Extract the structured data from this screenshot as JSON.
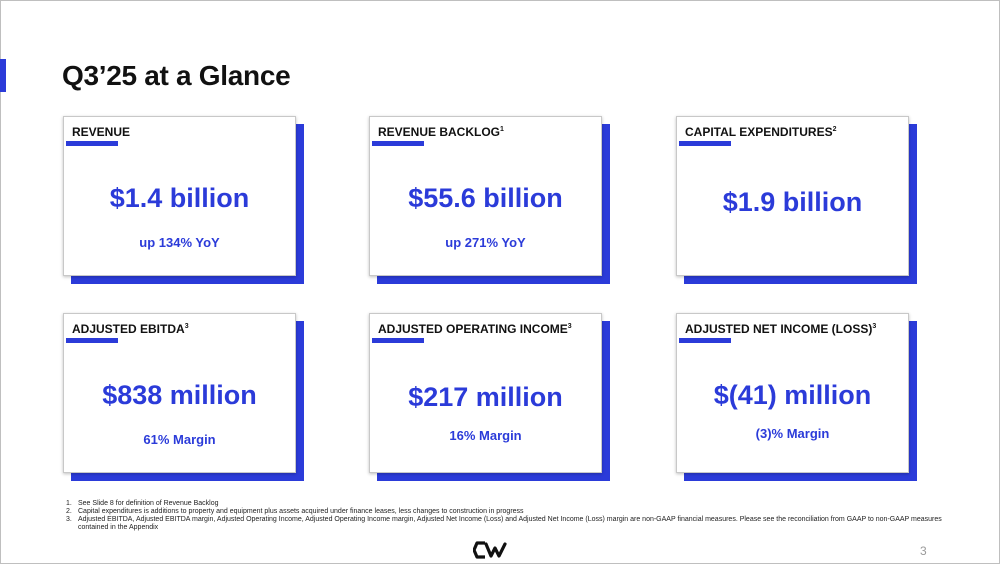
{
  "slide": {
    "title": "Q3’25 at a Glance",
    "page_number": "3",
    "accent_color": "#2b3bd9"
  },
  "cards": [
    {
      "label": "REVENUE",
      "sup": "",
      "value": "$1.4 billion",
      "sub": "up 134% YoY"
    },
    {
      "label": "REVENUE BACKLOG",
      "sup": "1",
      "value": "$55.6 billion",
      "sub": "up 271% YoY"
    },
    {
      "label": "CAPITAL EXPENDITURES",
      "sup": "2",
      "value": "$1.9 billion",
      "sub": ""
    },
    {
      "label": "ADJUSTED EBITDA",
      "sup": "3",
      "value": "$838 million",
      "sub": "61% Margin"
    },
    {
      "label": "ADJUSTED OPERATING INCOME",
      "sup": "3",
      "value": "$217 million",
      "sub": "16% Margin"
    },
    {
      "label": "ADJUSTED NET INCOME (LOSS)",
      "sup": "3",
      "value": "$(41) million",
      "sub": "(3)% Margin"
    }
  ],
  "footnotes": [
    {
      "num": "1.",
      "text": "See Slide 8 for definition of Revenue Backlog"
    },
    {
      "num": "2.",
      "text": "Capital expenditures is additions to property and equipment plus assets acquired under finance leases, less changes to construction in progress"
    },
    {
      "num": "3.",
      "text": "Adjusted EBITDA, Adjusted EBITDA margin, Adjusted Operating Income, Adjusted Operating Income margin, Adjusted Net Income (Loss) and Adjusted Net Income (Loss) margin are non-GAAP financial measures. Please see the reconciliation from GAAP to non-GAAP measures contained in the Appendix"
    }
  ],
  "logo": {
    "icon": "cw-logo-icon"
  }
}
